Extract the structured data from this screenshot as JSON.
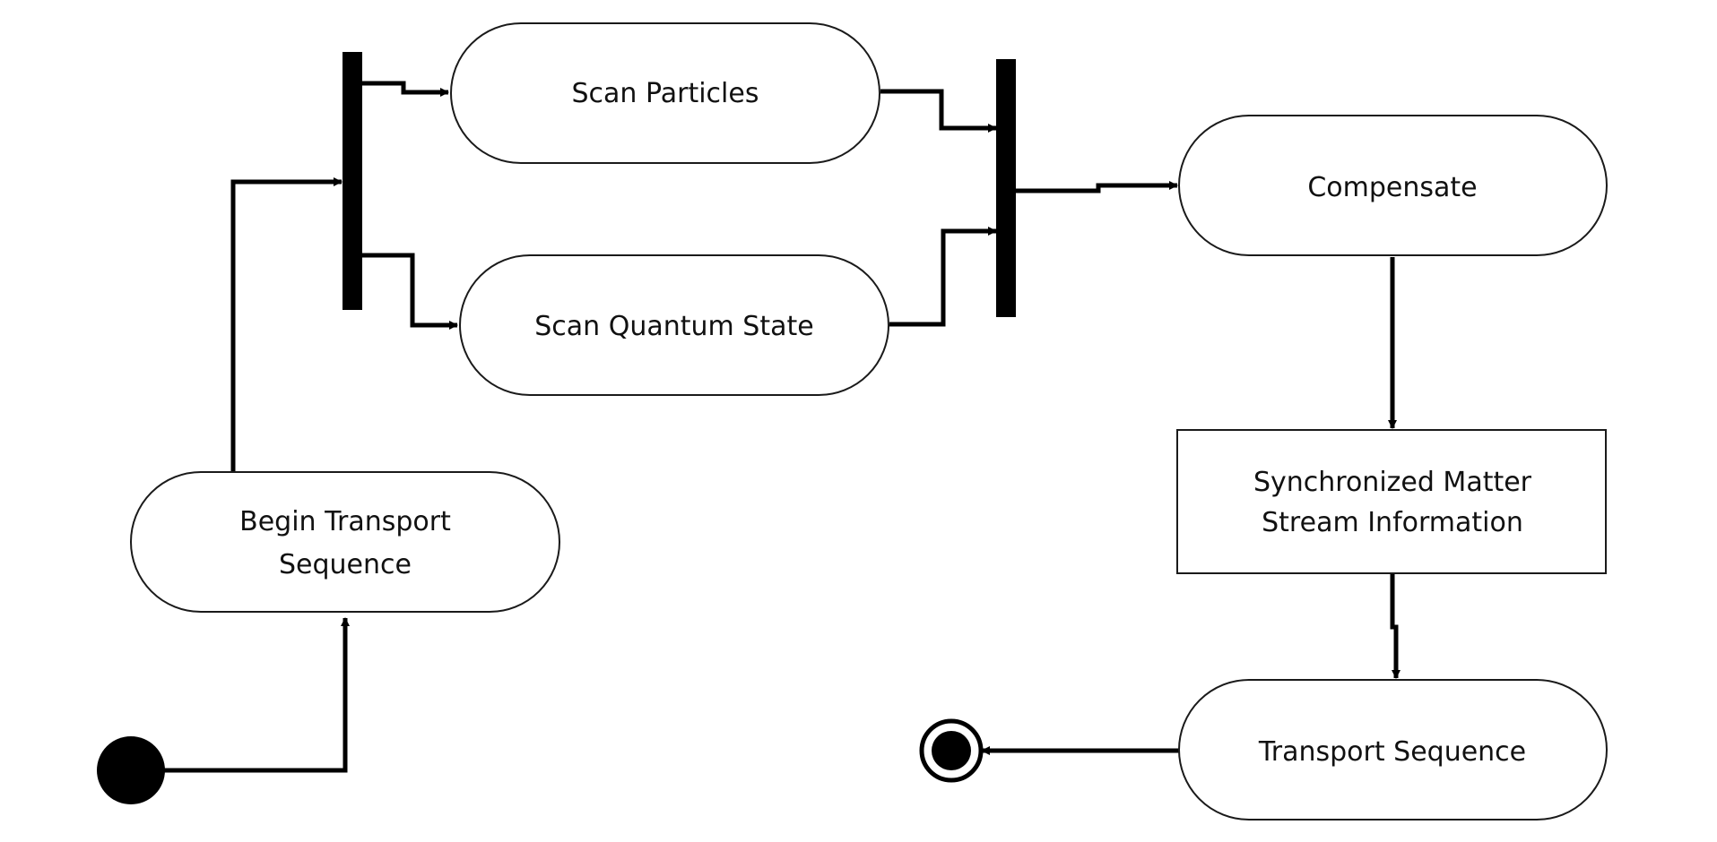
{
  "diagram": {
    "type": "activity-diagram",
    "nodes": {
      "begin": {
        "line1": "Begin Transport",
        "line2": "Sequence"
      },
      "scan_particles": {
        "label": "Scan Particles"
      },
      "scan_quantum": {
        "label": "Scan Quantum State"
      },
      "compensate": {
        "label": "Compensate"
      },
      "sync": {
        "line1": "Synchronized Matter",
        "line2": "Stream Information"
      },
      "transport": {
        "label": "Transport Sequence"
      }
    },
    "edges": [
      {
        "from": "initial",
        "to": "begin"
      },
      {
        "from": "begin",
        "to": "fork"
      },
      {
        "from": "fork",
        "to": "scan_particles"
      },
      {
        "from": "fork",
        "to": "scan_quantum"
      },
      {
        "from": "scan_particles",
        "to": "join"
      },
      {
        "from": "scan_quantum",
        "to": "join"
      },
      {
        "from": "join",
        "to": "compensate"
      },
      {
        "from": "compensate",
        "to": "sync"
      },
      {
        "from": "sync",
        "to": "transport"
      },
      {
        "from": "transport",
        "to": "final"
      }
    ]
  }
}
